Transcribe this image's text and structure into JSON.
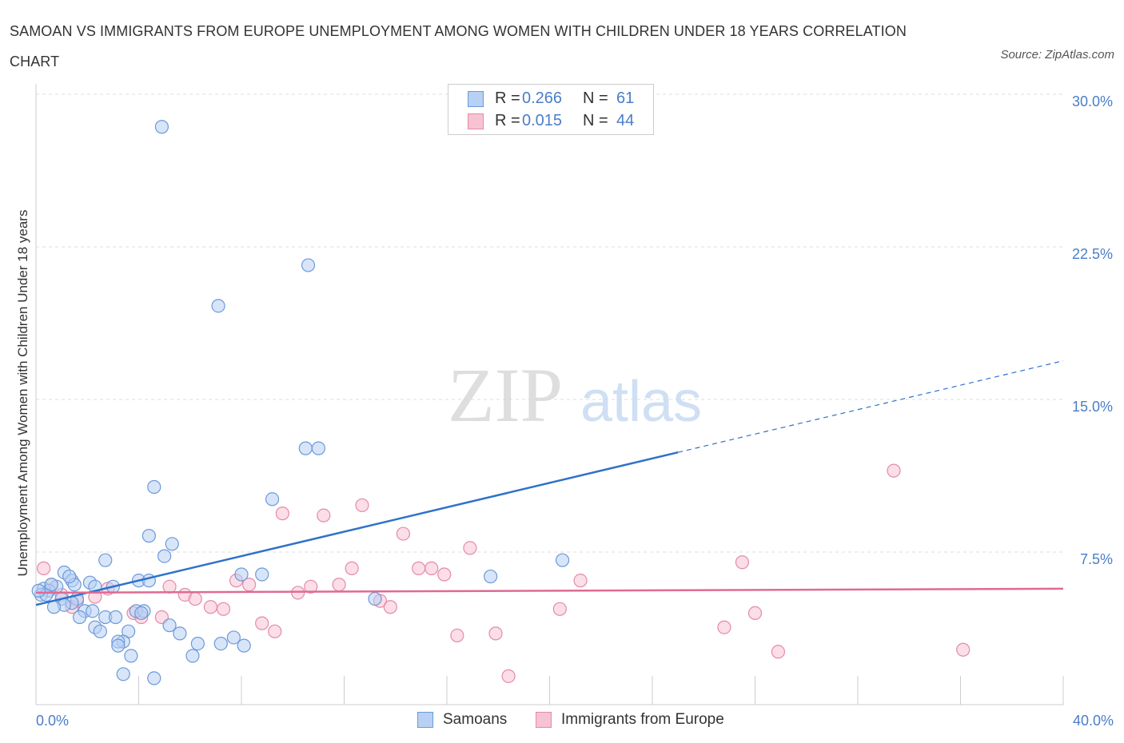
{
  "title": "SAMOAN VS IMMIGRANTS FROM EUROPE UNEMPLOYMENT AMONG WOMEN WITH CHILDREN UNDER 18 YEARS CORRELATION CHART",
  "source": "Source: ZipAtlas.com",
  "watermark": {
    "zip": "ZIP",
    "atlas": "atlas"
  },
  "colors": {
    "blue_fill": "#b8d0f4",
    "blue_stroke": "#6a9ad8",
    "blue_line": "#2f72c8",
    "pink_fill": "#f7c3d3",
    "pink_stroke": "#e48aa8",
    "pink_line": "#e06a92",
    "tick_text": "#4a7ec7",
    "grid": "#dddddd"
  },
  "legend": {
    "rows": [
      {
        "r_label": "R =",
        "r_value": "0.266",
        "n_label": "N =",
        "n_value": "61"
      },
      {
        "r_label": "R =",
        "r_value": "0.015",
        "n_label": "N =",
        "n_value": "44"
      }
    ]
  },
  "bottom_legend": [
    "Samoans",
    "Immigrants from Europe"
  ],
  "chart_data": {
    "type": "scatter",
    "title": "SAMOAN VS IMMIGRANTS FROM EUROPE UNEMPLOYMENT AMONG WOMEN WITH CHILDREN UNDER 18 YEARS CORRELATION CHART",
    "xlabel": "",
    "ylabel": "Unemployment Among Women with Children Under 18 years",
    "xlim": [
      0,
      40
    ],
    "ylim": [
      0,
      30
    ],
    "x_tick_labels": [
      "0.0%",
      "40.0%"
    ],
    "y_ticks": [
      7.5,
      15,
      22.5,
      30
    ],
    "y_tick_labels": [
      "7.5%",
      "15.0%",
      "22.5%",
      "30.0%"
    ],
    "grid": "horizontal dashed",
    "legend_position": "top-center",
    "series": [
      {
        "name": "Samoans",
        "color": "#b8d0f4",
        "R": 0.266,
        "N": 61,
        "trend": {
          "x": [
            0,
            25
          ],
          "y": [
            4.9,
            12.4
          ],
          "dashed_extension": {
            "x": [
              25,
              40
            ],
            "y": [
              12.4,
              16.9
            ]
          }
        },
        "points": [
          [
            4.9,
            28.4
          ],
          [
            10.6,
            21.6
          ],
          [
            7.1,
            19.6
          ],
          [
            10.5,
            12.6
          ],
          [
            11.0,
            12.6
          ],
          [
            4.6,
            10.7
          ],
          [
            9.2,
            10.1
          ],
          [
            4.4,
            8.3
          ],
          [
            5.3,
            7.9
          ],
          [
            5.0,
            7.3
          ],
          [
            2.7,
            7.1
          ],
          [
            20.5,
            7.1
          ],
          [
            1.1,
            6.5
          ],
          [
            8.0,
            6.4
          ],
          [
            8.8,
            6.4
          ],
          [
            17.7,
            6.3
          ],
          [
            1.4,
            6.1
          ],
          [
            1.5,
            5.9
          ],
          [
            4.0,
            6.1
          ],
          [
            4.4,
            6.1
          ],
          [
            2.1,
            6.0
          ],
          [
            0.8,
            5.8
          ],
          [
            0.3,
            5.7
          ],
          [
            0.5,
            5.6
          ],
          [
            2.3,
            5.8
          ],
          [
            3.0,
            5.8
          ],
          [
            0.2,
            5.4
          ],
          [
            0.4,
            5.4
          ],
          [
            1.0,
            5.2
          ],
          [
            1.6,
            5.2
          ],
          [
            1.4,
            5.0
          ],
          [
            13.2,
            5.2
          ],
          [
            1.1,
            4.9
          ],
          [
            0.7,
            4.8
          ],
          [
            1.9,
            4.6
          ],
          [
            2.2,
            4.6
          ],
          [
            3.9,
            4.6
          ],
          [
            4.2,
            4.6
          ],
          [
            4.1,
            4.5
          ],
          [
            1.7,
            4.3
          ],
          [
            2.7,
            4.3
          ],
          [
            3.1,
            4.3
          ],
          [
            5.2,
            3.9
          ],
          [
            2.3,
            3.8
          ],
          [
            2.5,
            3.6
          ],
          [
            3.6,
            3.6
          ],
          [
            5.6,
            3.5
          ],
          [
            3.4,
            3.1
          ],
          [
            3.2,
            3.1
          ],
          [
            7.7,
            3.3
          ],
          [
            6.3,
            3.0
          ],
          [
            7.2,
            3.0
          ],
          [
            8.1,
            2.9
          ],
          [
            3.2,
            2.9
          ],
          [
            3.7,
            2.4
          ],
          [
            6.1,
            2.4
          ],
          [
            3.4,
            1.5
          ],
          [
            4.6,
            1.3
          ],
          [
            0.1,
            5.6
          ],
          [
            0.6,
            5.9
          ],
          [
            1.3,
            6.3
          ]
        ]
      },
      {
        "name": "Immigrants from Europe",
        "color": "#f7c3d3",
        "R": 0.015,
        "N": 44,
        "trend": {
          "x": [
            0,
            40
          ],
          "y": [
            5.5,
            5.7
          ]
        },
        "points": [
          [
            0.3,
            6.7
          ],
          [
            0.6,
            5.9
          ],
          [
            1.0,
            5.4
          ],
          [
            1.6,
            5.1
          ],
          [
            2.3,
            5.3
          ],
          [
            1.4,
            4.8
          ],
          [
            2.8,
            5.7
          ],
          [
            3.8,
            4.5
          ],
          [
            4.1,
            4.3
          ],
          [
            4.9,
            4.3
          ],
          [
            5.2,
            5.8
          ],
          [
            5.8,
            5.4
          ],
          [
            6.2,
            5.2
          ],
          [
            6.8,
            4.8
          ],
          [
            7.3,
            4.7
          ],
          [
            7.8,
            6.1
          ],
          [
            8.3,
            5.9
          ],
          [
            8.8,
            4.0
          ],
          [
            9.3,
            3.6
          ],
          [
            9.6,
            9.4
          ],
          [
            10.2,
            5.5
          ],
          [
            10.7,
            5.8
          ],
          [
            11.2,
            9.3
          ],
          [
            11.8,
            5.9
          ],
          [
            12.3,
            6.7
          ],
          [
            12.7,
            9.8
          ],
          [
            13.4,
            5.1
          ],
          [
            13.8,
            4.8
          ],
          [
            14.3,
            8.4
          ],
          [
            14.9,
            6.7
          ],
          [
            15.4,
            6.7
          ],
          [
            15.9,
            6.4
          ],
          [
            16.4,
            3.4
          ],
          [
            16.9,
            7.7
          ],
          [
            17.9,
            3.5
          ],
          [
            18.4,
            1.4
          ],
          [
            20.4,
            4.7
          ],
          [
            21.2,
            6.1
          ],
          [
            26.8,
            3.8
          ],
          [
            27.5,
            7.0
          ],
          [
            28.0,
            4.5
          ],
          [
            28.9,
            2.6
          ],
          [
            33.4,
            11.5
          ],
          [
            36.1,
            2.7
          ]
        ]
      }
    ]
  }
}
